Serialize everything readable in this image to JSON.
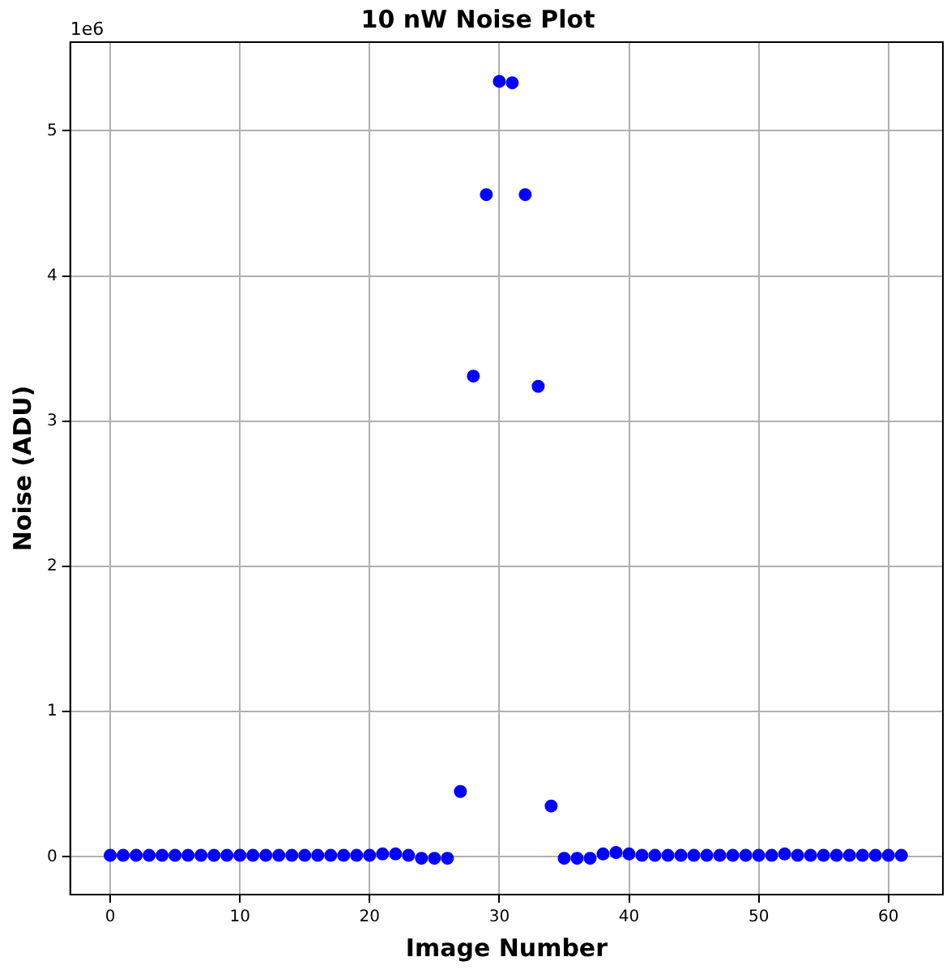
{
  "chart_data": {
    "type": "scatter",
    "title": "10 nW Noise Plot",
    "xlabel": "Image Number",
    "ylabel": "Noise (ADU)",
    "annotations": [
      "1e6"
    ],
    "x": [
      0,
      1,
      2,
      3,
      4,
      5,
      6,
      7,
      8,
      9,
      10,
      11,
      12,
      13,
      14,
      15,
      16,
      17,
      18,
      19,
      20,
      21,
      22,
      23,
      24,
      25,
      26,
      27,
      28,
      29,
      30,
      31,
      32,
      33,
      34,
      35,
      36,
      37,
      38,
      39,
      40,
      41,
      42,
      43,
      44,
      45,
      46,
      47,
      48,
      49,
      50,
      51,
      52,
      53,
      54,
      55,
      56,
      57,
      58,
      59,
      60,
      61
    ],
    "series": [
      {
        "color": "#0000ff",
        "values": [
          0.01,
          0.01,
          0.01,
          0.01,
          0.01,
          0.01,
          0.01,
          0.01,
          0.01,
          0.01,
          0.01,
          0.01,
          0.01,
          0.01,
          0.01,
          0.01,
          0.01,
          0.01,
          0.01,
          0.01,
          0.01,
          0.02,
          0.02,
          0.01,
          -0.01,
          -0.01,
          -0.01,
          0.45,
          3.31,
          4.56,
          5.34,
          5.33,
          4.56,
          3.24,
          0.35,
          -0.01,
          -0.01,
          -0.01,
          0.02,
          0.03,
          0.02,
          0.01,
          0.01,
          0.01,
          0.01,
          0.01,
          0.01,
          0.01,
          0.01,
          0.01,
          0.01,
          0.01,
          0.02,
          0.01,
          0.01,
          0.01,
          0.01,
          0.01,
          0.01,
          0.01,
          0.01,
          0.01
        ]
      }
    ],
    "xlim": [
      -3.08,
      64.2
    ],
    "ylim": [
      -0.26,
      5.61
    ],
    "xticks": [
      0,
      10,
      20,
      30,
      40,
      50,
      60
    ],
    "yticks": [
      0,
      1,
      2,
      3,
      4,
      5
    ],
    "grid": true,
    "marker": "circle",
    "legend": false
  }
}
